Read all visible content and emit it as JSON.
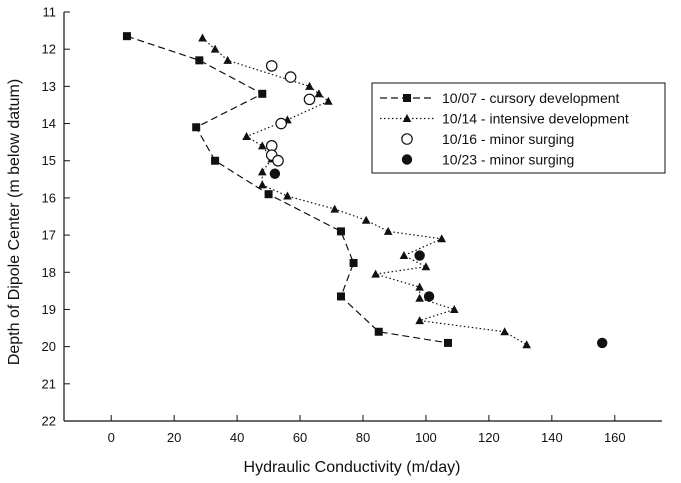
{
  "chart_data": {
    "type": "scatter",
    "xlabel": "Hydraulic Conductivity (m/day)",
    "ylabel": "Depth of Dipole Center (m below datum)",
    "xlim": [
      -15,
      175
    ],
    "ylim": [
      11,
      22
    ],
    "y_inverted": true,
    "xticks": [
      0,
      20,
      40,
      60,
      80,
      100,
      120,
      140,
      160
    ],
    "yticks": [
      11,
      12,
      13,
      14,
      15,
      16,
      17,
      18,
      19,
      20,
      21,
      22
    ],
    "grid": false,
    "legend_position": "top-right",
    "series": [
      {
        "name": "10/07 - cursory development",
        "marker": "square-filled",
        "line": "dashed",
        "points": [
          [
            5,
            11.65
          ],
          [
            28,
            12.3
          ],
          [
            48,
            13.2
          ],
          [
            27,
            14.1
          ],
          [
            33,
            15.0
          ],
          [
            50,
            15.9
          ],
          [
            73,
            16.9
          ],
          [
            77,
            17.75
          ],
          [
            73,
            18.65
          ],
          [
            85,
            19.6
          ],
          [
            107,
            19.9
          ]
        ]
      },
      {
        "name": "10/14 - intensive development",
        "marker": "triangle-filled",
        "line": "dotted",
        "points": [
          [
            29,
            11.7
          ],
          [
            33,
            12.0
          ],
          [
            37,
            12.3
          ],
          [
            63,
            13.0
          ],
          [
            66,
            13.2
          ],
          [
            69,
            13.4
          ],
          [
            56,
            13.9
          ],
          [
            43,
            14.35
          ],
          [
            48,
            14.6
          ],
          [
            51,
            14.95
          ],
          [
            48,
            15.3
          ],
          [
            48,
            15.65
          ],
          [
            56,
            15.95
          ],
          [
            71,
            16.3
          ],
          [
            81,
            16.6
          ],
          [
            88,
            16.9
          ],
          [
            105,
            17.1
          ],
          [
            93,
            17.55
          ],
          [
            100,
            17.85
          ],
          [
            84,
            18.05
          ],
          [
            98,
            18.4
          ],
          [
            98,
            18.7
          ],
          [
            109,
            19.0
          ],
          [
            98,
            19.3
          ],
          [
            125,
            19.6
          ],
          [
            132,
            19.95
          ]
        ]
      },
      {
        "name": "10/16 - minor surging",
        "marker": "circle-open",
        "line": "none",
        "points": [
          [
            51,
            12.45
          ],
          [
            57,
            12.75
          ],
          [
            63,
            13.35
          ],
          [
            54,
            14.0
          ],
          [
            51,
            14.6
          ],
          [
            51,
            14.85
          ],
          [
            53,
            15.0
          ]
        ]
      },
      {
        "name": "10/23 - minor surging",
        "marker": "circle-filled",
        "line": "none",
        "points": [
          [
            52,
            15.35
          ],
          [
            98,
            17.55
          ],
          [
            101,
            18.65
          ],
          [
            156,
            19.9
          ]
        ]
      }
    ]
  }
}
